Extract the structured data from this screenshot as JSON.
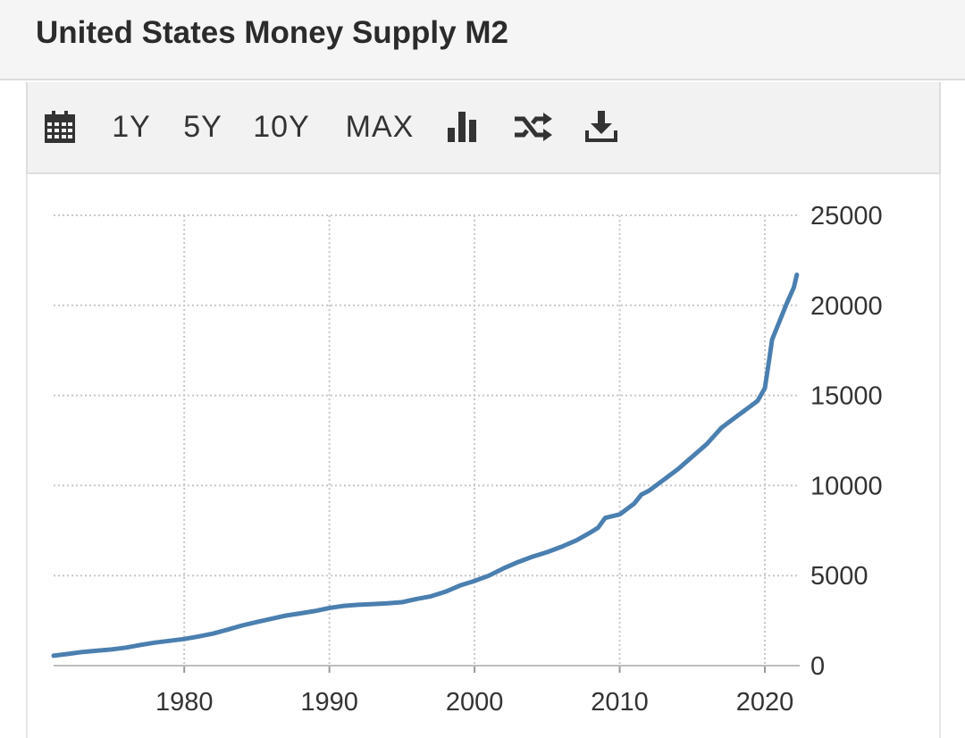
{
  "header": {
    "title": "United States Money Supply M2"
  },
  "toolbar": {
    "calendar_icon": "calendar-icon",
    "range_buttons": [
      "1Y",
      "5Y",
      "10Y",
      "MAX"
    ],
    "chart_type_icon": "bar-chart-icon",
    "compare_icon": "shuffle-icon",
    "download_icon": "download-icon"
  },
  "colors": {
    "line": "#4a7fb0",
    "grid": "#c8c8c8",
    "toolbar_bg": "#f2f2f2"
  },
  "chart_data": {
    "type": "line",
    "title": "United States Money Supply M2",
    "xlabel": "",
    "ylabel": "",
    "xlim": [
      1971,
      2022.4
    ],
    "ylim": [
      0,
      25000
    ],
    "x_ticks": [
      1980,
      1990,
      2000,
      2010,
      2020
    ],
    "y_ticks": [
      0,
      5000,
      10000,
      15000,
      20000,
      25000
    ],
    "y_axis_position": "right",
    "grid": true,
    "series": [
      {
        "name": "M2",
        "x": [
          1971,
          1972,
          1973,
          1974,
          1975,
          1976,
          1977,
          1978,
          1979,
          1980,
          1981,
          1982,
          1983,
          1984,
          1985,
          1986,
          1987,
          1988,
          1989,
          1990,
          1991,
          1992,
          1993,
          1994,
          1995,
          1996,
          1997,
          1998,
          1999,
          2000,
          2001,
          2002,
          2003,
          2004,
          2005,
          2006,
          2007,
          2008,
          2008.5,
          2009,
          2010,
          2011,
          2011.5,
          2012,
          2013,
          2014,
          2015,
          2016,
          2017,
          2018,
          2019,
          2019.5,
          2020,
          2020.3,
          2020.5,
          2021,
          2021.5,
          2022,
          2022.2
        ],
        "values": [
          550,
          650,
          760,
          830,
          900,
          1000,
          1150,
          1280,
          1380,
          1480,
          1620,
          1780,
          2000,
          2230,
          2420,
          2600,
          2780,
          2900,
          3030,
          3200,
          3320,
          3380,
          3420,
          3460,
          3520,
          3700,
          3850,
          4100,
          4450,
          4700,
          5000,
          5400,
          5750,
          6050,
          6300,
          6600,
          6950,
          7400,
          7650,
          8200,
          8400,
          9000,
          9500,
          9700,
          10300,
          10900,
          11600,
          12300,
          13200,
          13800,
          14400,
          14700,
          15400,
          17000,
          18100,
          19100,
          20100,
          21000,
          21700
        ]
      }
    ]
  }
}
